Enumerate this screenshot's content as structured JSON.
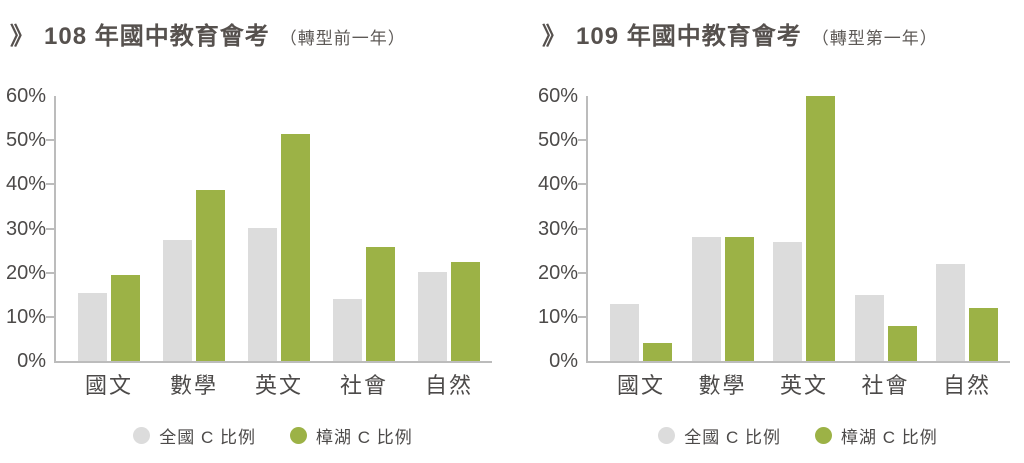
{
  "palette": {
    "national_bar": "#dcdcdc",
    "changhu_bar": "#9cb246",
    "axis_line": "#bcbcbc",
    "label_text": "#4c4a49",
    "title_text": "#56514e"
  },
  "charts": [
    {
      "marker": "》",
      "title": "108 年國中教育會考",
      "subtitle": "（轉型前一年）",
      "categories": [
        "國文",
        "數學",
        "英文",
        "社會",
        "自然"
      ],
      "y_axis": {
        "min": 0,
        "max": 60,
        "step": 10,
        "labels": [
          "0%",
          "10%",
          "20%",
          "30%",
          "40%",
          "50%",
          "60%"
        ]
      },
      "series": [
        {
          "name": "全國 C 比例",
          "color": "#dcdcdc",
          "values": [
            15.5,
            27.3,
            30.2,
            14.1,
            20.1
          ]
        },
        {
          "name": "樟湖  C 比例",
          "color": "#9cb246",
          "values": [
            19.5,
            38.7,
            51.5,
            25.8,
            22.5
          ]
        }
      ]
    },
    {
      "marker": "》",
      "title": "109 年國中教育會考",
      "subtitle": "（轉型第一年）",
      "categories": [
        "國文",
        "數學",
        "英文",
        "社會",
        "自然"
      ],
      "y_axis": {
        "min": 0,
        "max": 60,
        "step": 10,
        "labels": [
          "0%",
          "10%",
          "20%",
          "30%",
          "40%",
          "50%",
          "60%"
        ]
      },
      "series": [
        {
          "name": "全國 C 比例",
          "color": "#dcdcdc",
          "values": [
            13,
            28,
            27,
            15,
            22
          ]
        },
        {
          "name": "樟湖  C 比例",
          "color": "#9cb246",
          "values": [
            4,
            28,
            60,
            8,
            12
          ]
        }
      ]
    }
  ],
  "chart_data": [
    {
      "type": "bar",
      "title": "》108 年國中教育會考（轉型前一年）",
      "categories": [
        "國文",
        "數學",
        "英文",
        "社會",
        "自然"
      ],
      "series": [
        {
          "name": "全國 C 比例",
          "values": [
            15.5,
            27.3,
            30.2,
            14.1,
            20.1
          ]
        },
        {
          "name": "樟湖 C 比例",
          "values": [
            19.5,
            38.7,
            51.5,
            25.8,
            22.5
          ]
        }
      ],
      "xlabel": "",
      "ylabel": "",
      "ylim": [
        0,
        60
      ],
      "ytick_step": 10,
      "ytick_format": "percent",
      "grid": false,
      "legend_position": "bottom"
    },
    {
      "type": "bar",
      "title": "》109 年國中教育會考（轉型第一年）",
      "categories": [
        "國文",
        "數學",
        "英文",
        "社會",
        "自然"
      ],
      "series": [
        {
          "name": "全國 C 比例",
          "values": [
            13,
            28,
            27,
            15,
            22
          ]
        },
        {
          "name": "樟湖 C 比例",
          "values": [
            4,
            28,
            60,
            8,
            12
          ]
        }
      ],
      "xlabel": "",
      "ylabel": "",
      "ylim": [
        0,
        60
      ],
      "ytick_step": 10,
      "ytick_format": "percent",
      "grid": false,
      "legend_position": "bottom"
    }
  ]
}
